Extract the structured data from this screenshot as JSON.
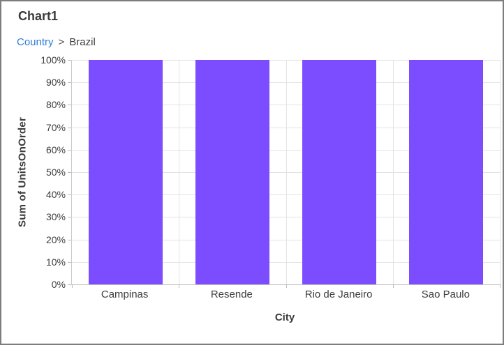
{
  "window": {
    "title": "Chart1"
  },
  "breadcrumb": {
    "items": [
      {
        "label": "Country",
        "type": "link"
      },
      {
        "label": "Brazil",
        "type": "current"
      }
    ],
    "separator": ">"
  },
  "chart_data": {
    "type": "bar",
    "subtype": "stacking-column-100",
    "title": "",
    "categories": [
      "Campinas",
      "Resende",
      "Rio de Janeiro",
      "Sao Paulo"
    ],
    "series": [
      {
        "name": "Sum of UnitsOnOrder",
        "values": [
          100,
          100,
          100,
          100
        ]
      }
    ],
    "values": [
      100,
      100,
      100,
      100
    ],
    "xlabel": "City",
    "ylabel": "Sum of UnitsOnOrder",
    "ylim": [
      0,
      100
    ],
    "ytick_step": 10,
    "yticks": [
      "0%",
      "10%",
      "20%",
      "30%",
      "40%",
      "50%",
      "60%",
      "70%",
      "80%",
      "90%",
      "100%"
    ],
    "grid": true,
    "legend_position": "none",
    "bar_color": "#7c4dff"
  },
  "colors": {
    "bar": "#7c4dff",
    "link": "#2f7cd9",
    "text": "#3b3b3b",
    "grid": "#e3e3e3",
    "axis": "#c9c9c9",
    "window_border": "#7d7d7d"
  }
}
